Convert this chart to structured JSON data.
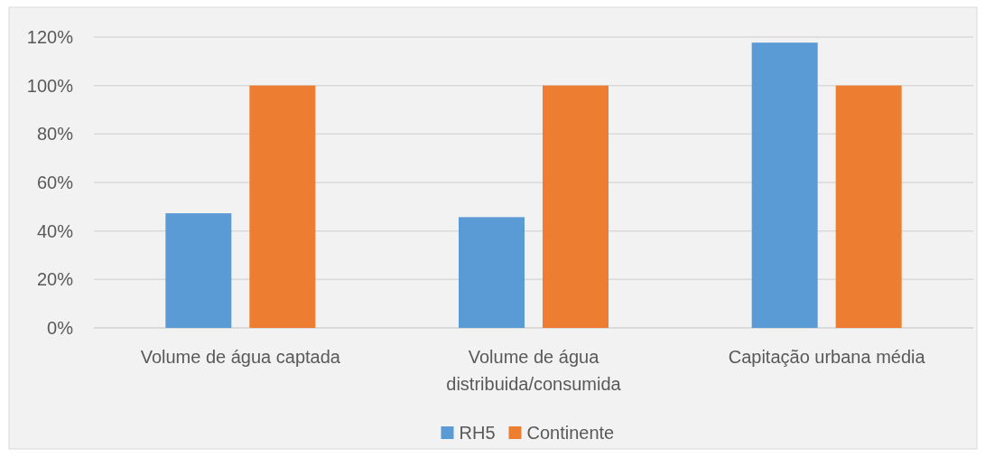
{
  "chart_data": {
    "type": "bar",
    "categories": [
      "Volume de água captada",
      "Volume de água distribuida/consumida",
      "Capitação urbana média"
    ],
    "series": [
      {
        "name": "RH5",
        "color": "#5b9bd5",
        "values": [
          47.3,
          45.7,
          117.7
        ]
      },
      {
        "name": "Continente",
        "color": "#ed7d31",
        "values": [
          100,
          100,
          100
        ]
      }
    ],
    "ylim": [
      0,
      120
    ],
    "yticks": [
      {
        "value": 0,
        "label": "0%"
      },
      {
        "value": 20,
        "label": "20%"
      },
      {
        "value": 40,
        "label": "40%"
      },
      {
        "value": 60,
        "label": "60%"
      },
      {
        "value": 80,
        "label": "80%"
      },
      {
        "value": 100,
        "label": "100%"
      },
      {
        "value": 120,
        "label": "120%"
      }
    ],
    "grid": "y",
    "legend": "bottom"
  }
}
